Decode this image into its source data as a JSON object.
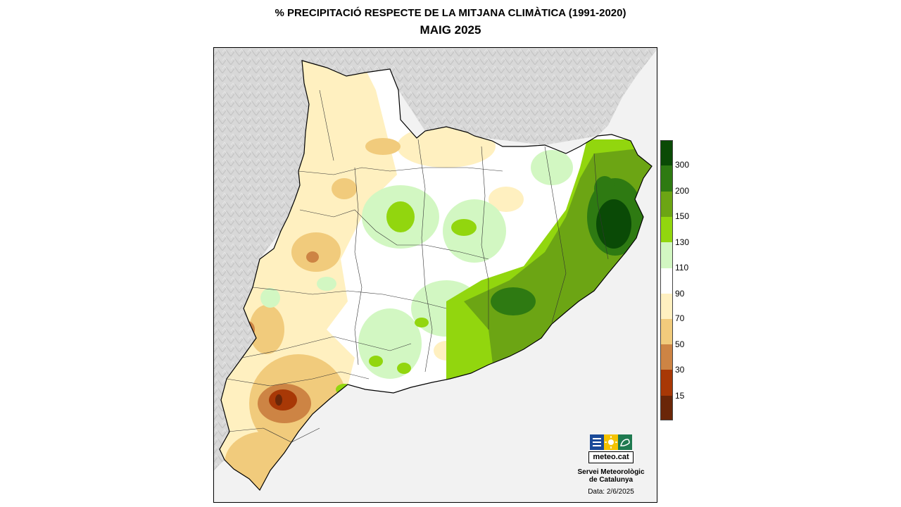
{
  "header": {
    "title": "% PRECIPITACIÓ RESPECTE DE LA MITJANA CLIMÀTICA (1991-2020)",
    "subtitle": "MAIG 2025"
  },
  "legend": {
    "labels": [
      "300",
      "200",
      "150",
      "130",
      "110",
      "90",
      "70",
      "50",
      "30",
      "15"
    ],
    "colors": [
      "#0a4a06",
      "#2e7a12",
      "#6ca514",
      "#92d60e",
      "#d2f7c2",
      "#ffffff",
      "#fff0c0",
      "#f1cb7c",
      "#cd8444",
      "#a83806",
      "#6a2608"
    ]
  },
  "logo": {
    "brand": "meteo.cat",
    "org_line1": "Servei Meteorològic",
    "org_line2": "de Catalunya",
    "date": "Data: 2/6/2025",
    "colors": [
      "#1a4a98",
      "#f4c300",
      "#1f7a50"
    ]
  },
  "map": {
    "region": "Catalunya",
    "sea_color": "#f2f2f2",
    "terrain_color": "#d9d9d9"
  }
}
